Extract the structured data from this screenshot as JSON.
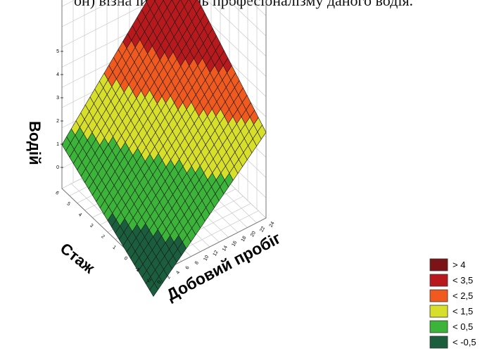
{
  "caption_fragment": "он) вiзна iити рiвень професiоналiзму даного водiя.",
  "chart_data": {
    "type": "surface3d",
    "title": "",
    "xlabel": "Добовий пробіг",
    "ylabel": "Стаж",
    "zlabel": "Водій",
    "z_ticks": [
      "0",
      "1",
      "2",
      "3",
      "4",
      "5"
    ],
    "y_ticks": [
      "-2",
      "-1",
      "0",
      "1",
      "2",
      "3",
      "4",
      "5",
      "6"
    ],
    "x_ticks": [
      "0",
      "2",
      "4",
      "6",
      "8",
      "10",
      "12",
      "14",
      "16",
      "18",
      "20",
      "22",
      "24"
    ],
    "zlim": [
      0,
      5
    ],
    "grid": true,
    "legend_position": "bottom-right",
    "legend": [
      {
        "label": "> 4",
        "color": "#7b1416"
      },
      {
        "label": "< 3,5",
        "color": "#b8191d"
      },
      {
        "label": "< 2,5",
        "color": "#f05a1e"
      },
      {
        "label": "< 1,5",
        "color": "#d8df2a"
      },
      {
        "label": "< 0,5",
        "color": "#3cb43a"
      },
      {
        "label": "< -0,5",
        "color": "#1b5e3e"
      }
    ],
    "surface_corner_values": {
      "low_x_low_y": -0.6,
      "low_x_high_y": 1.1,
      "high_x_low_y": 2.2,
      "high_x_high_y": 4.6
    }
  }
}
